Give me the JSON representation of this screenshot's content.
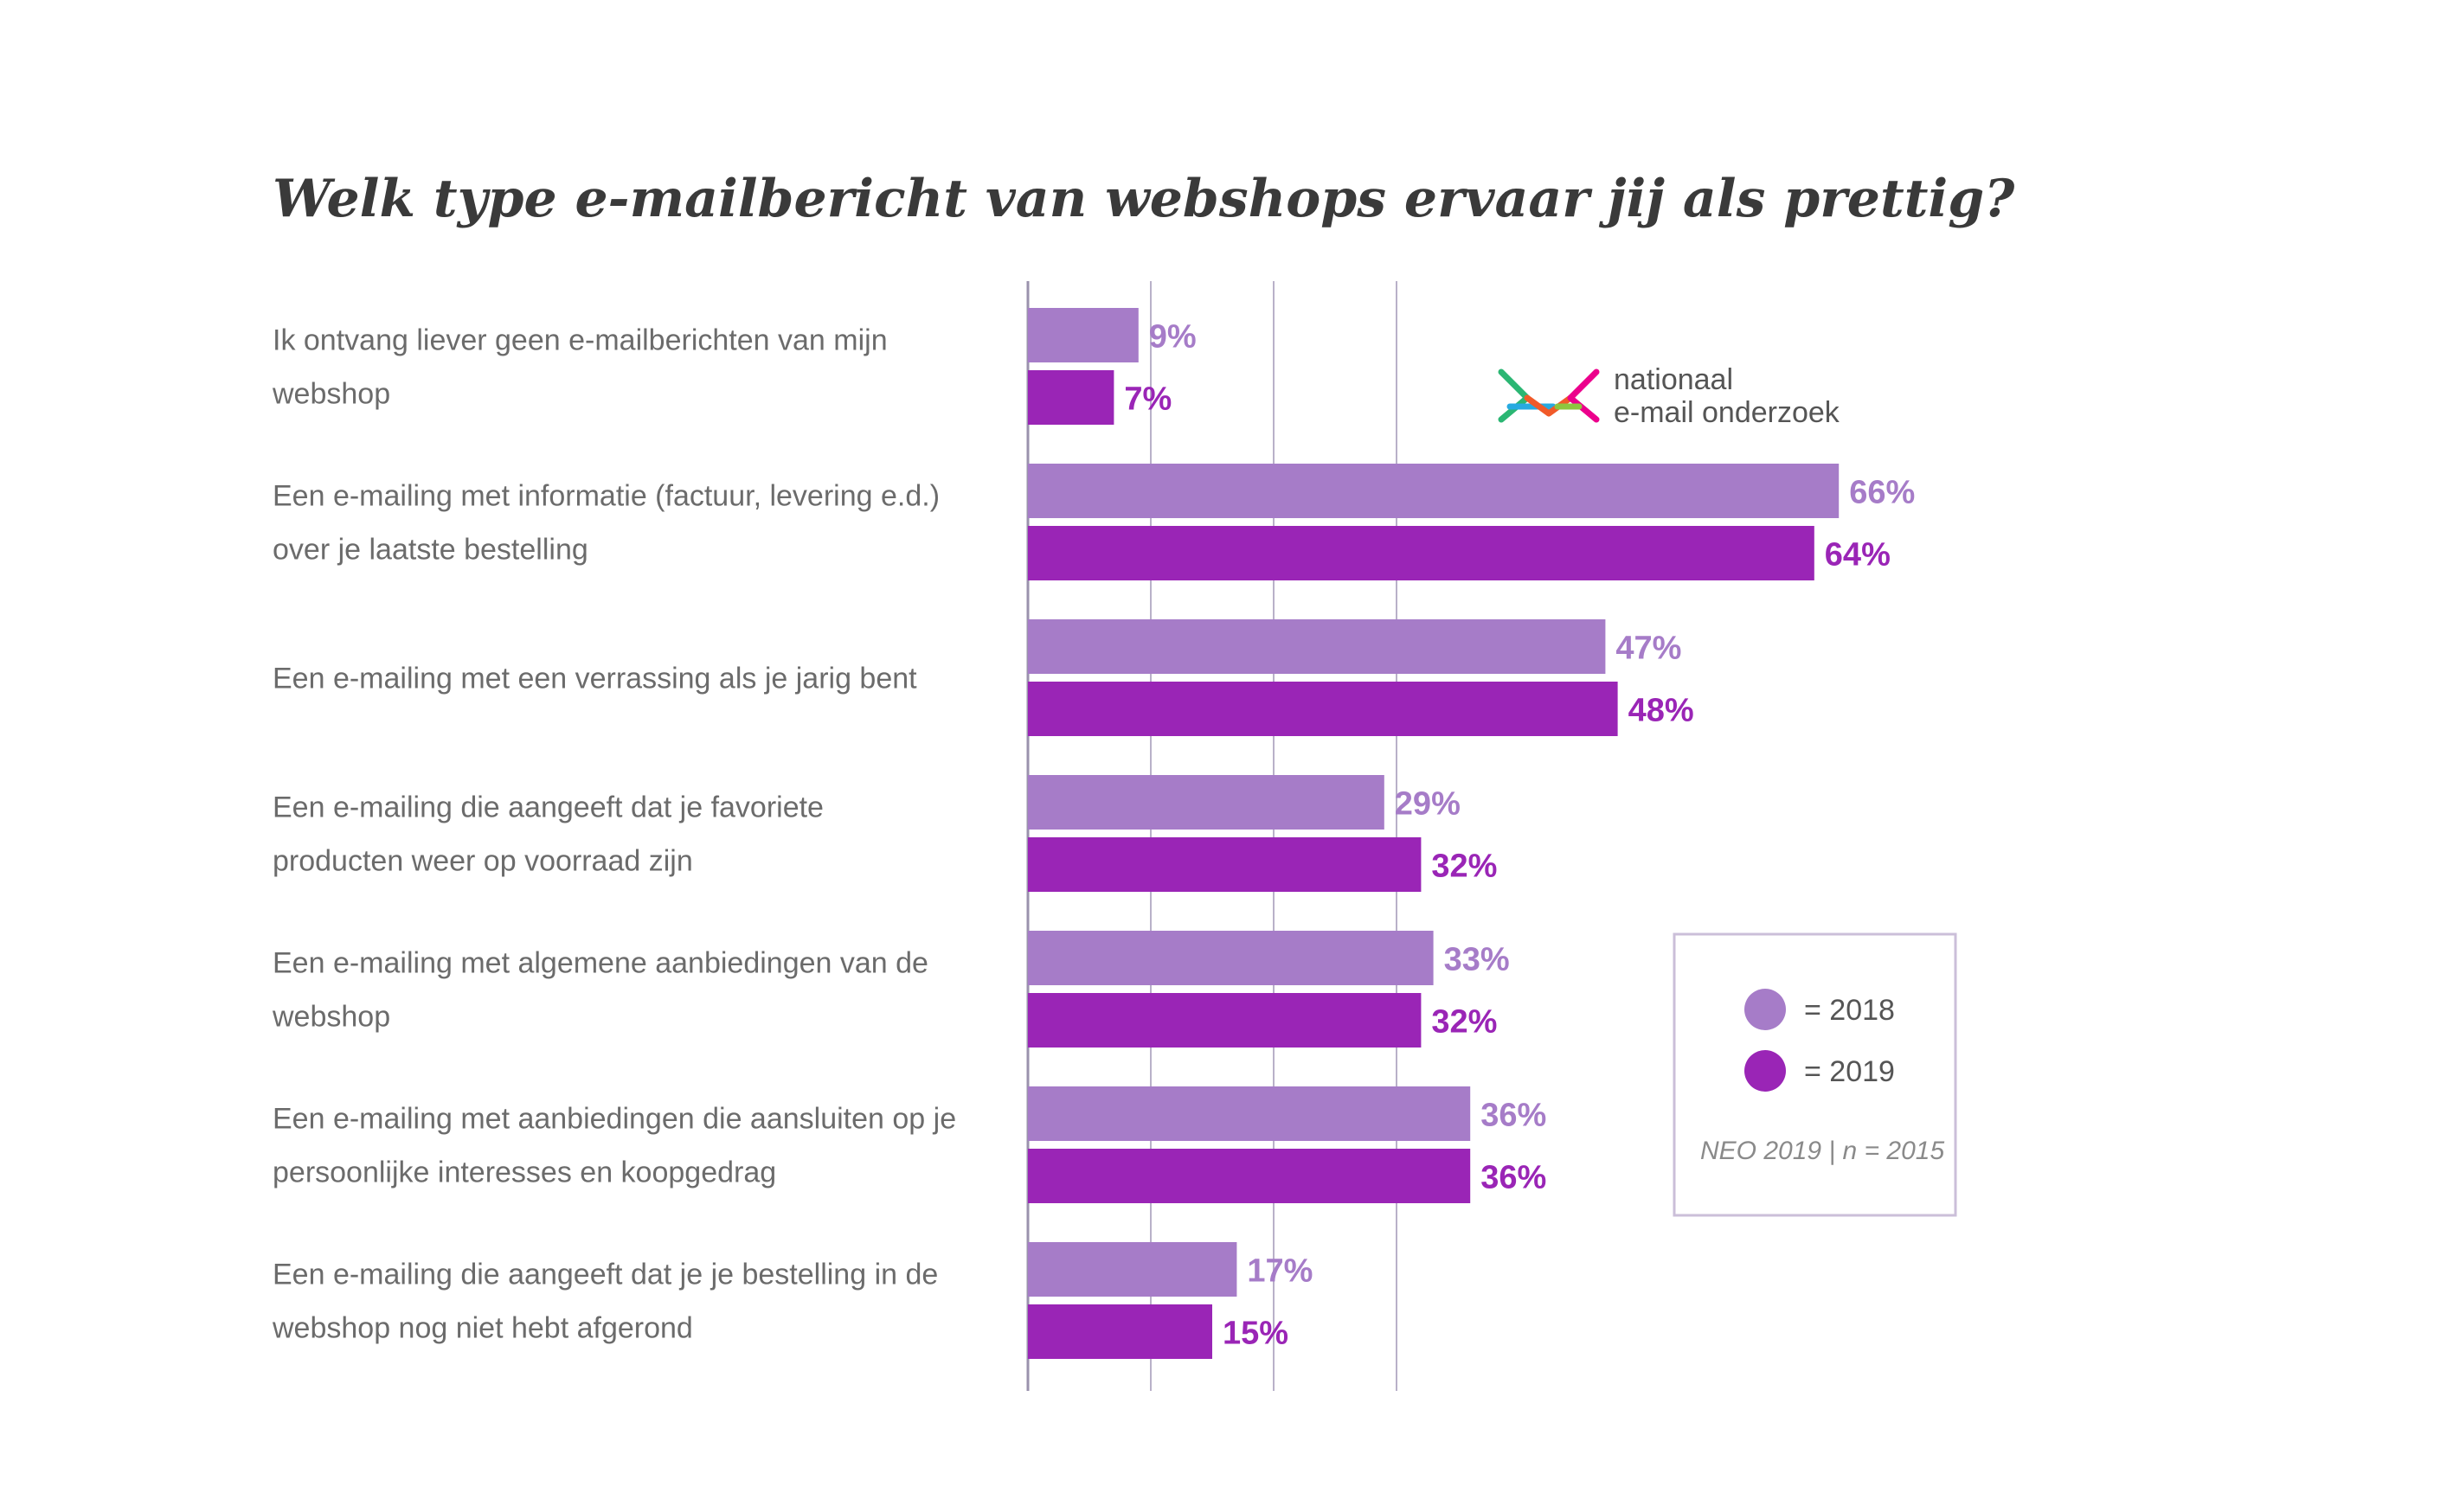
{
  "chart_data": {
    "type": "bar",
    "orientation": "horizontal",
    "title": "Welk type e-mailbericht van webshops ervaar jij als prettig?",
    "categories": [
      [
        "Ik ontvang liever geen e-mailberichten van mijn",
        "webshop"
      ],
      [
        "Een e-mailing met informatie (factuur, levering e.d.)",
        "over je laatste bestelling"
      ],
      [
        "Een e-mailing met een verrassing als je jarig bent"
      ],
      [
        "Een e-mailing die aangeeft dat je favoriete",
        "producten weer op voorraad zijn"
      ],
      [
        "Een e-mailing met algemene aanbiedingen van de",
        "webshop"
      ],
      [
        "Een e-mailing met aanbiedingen die aansluiten op je",
        "persoonlijke interesses en koopgedrag"
      ],
      [
        "Een e-mailing die aangeeft dat je je bestelling in de",
        "webshop nog niet hebt afgerond"
      ]
    ],
    "series": [
      {
        "name": "2018",
        "color": "#a67cc8",
        "values": [
          9,
          66,
          47,
          29,
          33,
          36,
          17
        ],
        "labels": [
          "9%",
          "66%",
          "47%",
          "29%",
          "33%",
          "36%",
          "17%"
        ]
      },
      {
        "name": "2019",
        "color": "#9a25b6",
        "values": [
          7,
          64,
          48,
          32,
          32,
          36,
          15
        ],
        "labels": [
          "7%",
          "64%",
          "48%",
          "32%",
          "32%",
          "36%",
          "15%"
        ]
      }
    ],
    "xlim": [
      0,
      70
    ],
    "gridlines": [
      0,
      10,
      20,
      30
    ],
    "legend": {
      "position": "right",
      "items": [
        {
          "label": "= 2018",
          "color": "#a67cc8"
        },
        {
          "label": "= 2019",
          "color": "#9a25b6"
        }
      ],
      "source": "NEO 2019 | n = 2015"
    },
    "logo": {
      "line1": "nationaal",
      "line2": "e-mail onderzoek",
      "colors": [
        "#2bb673",
        "#27aae1",
        "#f15a29",
        "#ec008c",
        "#8dc63f"
      ]
    }
  }
}
